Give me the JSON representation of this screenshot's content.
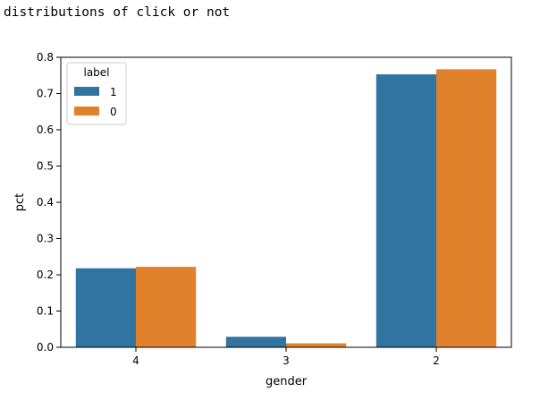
{
  "output_text": "distributions of click or not",
  "chart_data": {
    "type": "bar",
    "title": "",
    "xlabel": "gender",
    "ylabel": "pct",
    "categories": [
      "4",
      "3",
      "2"
    ],
    "series": [
      {
        "name": "1",
        "values": [
          0.218,
          0.029,
          0.753
        ],
        "color": "#3274a1"
      },
      {
        "name": "0",
        "values": [
          0.222,
          0.011,
          0.767
        ],
        "color": "#e1812c"
      }
    ],
    "ylim": [
      0,
      0.8
    ],
    "yticks": [
      "0.0",
      "0.1",
      "0.2",
      "0.3",
      "0.4",
      "0.5",
      "0.6",
      "0.7",
      "0.8"
    ],
    "grid": false,
    "legend": {
      "title": "label",
      "placement": "top-left"
    }
  }
}
